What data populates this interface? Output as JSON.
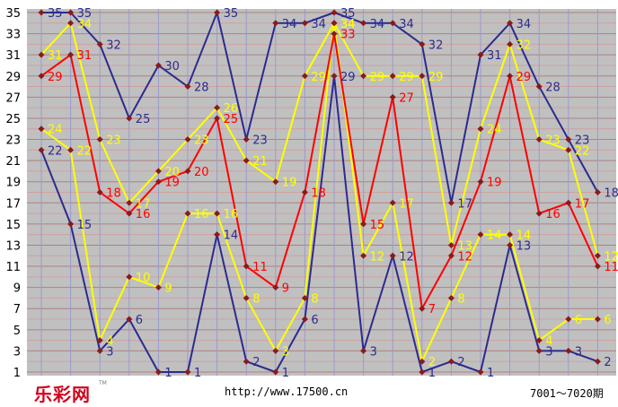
{
  "chart_data": {
    "type": "line",
    "x": [
      1,
      2,
      3,
      4,
      5,
      6,
      7,
      8,
      9,
      10,
      11,
      12,
      13,
      14,
      15,
      16,
      17,
      18,
      19,
      20
    ],
    "ylim": [
      1,
      35
    ],
    "yticks": [
      1,
      3,
      5,
      7,
      9,
      11,
      13,
      15,
      17,
      19,
      21,
      23,
      25,
      27,
      29,
      31,
      33,
      35
    ],
    "grid": true,
    "series": [
      {
        "color": "#ffff00",
        "values": [
          24,
          22,
          4,
          10,
          9,
          16,
          16,
          8,
          3,
          8,
          34,
          12,
          17,
          2,
          8,
          14,
          14,
          4,
          6,
          6
        ]
      },
      {
        "color": "#ff0000",
        "values": [
          29,
          31,
          18,
          16,
          19,
          20,
          25,
          11,
          9,
          18,
          33,
          15,
          27,
          7,
          12,
          19,
          29,
          16,
          17,
          11
        ]
      },
      {
        "color": "#ffff00",
        "values": [
          31,
          34,
          23,
          17,
          20,
          23,
          26,
          21,
          19,
          29,
          34,
          29,
          29,
          29,
          13,
          24,
          32,
          23,
          22,
          12
        ]
      },
      {
        "color": "#2b2b8f",
        "values": [
          22,
          15,
          3,
          6,
          1,
          1,
          14,
          2,
          1,
          6,
          29,
          3,
          12,
          1,
          2,
          1,
          13,
          3,
          3,
          2
        ]
      },
      {
        "color": "#2b2b8f",
        "values": [
          35,
          35,
          32,
          25,
          30,
          28,
          35,
          23,
          34,
          34,
          35,
          34,
          34,
          32,
          17,
          31,
          34,
          28,
          23,
          18
        ]
      }
    ]
  },
  "footer": {
    "logo": "乐彩网",
    "logo_sup": "TM",
    "url": "http://www.17500.cn",
    "period": "7001～7020期"
  }
}
